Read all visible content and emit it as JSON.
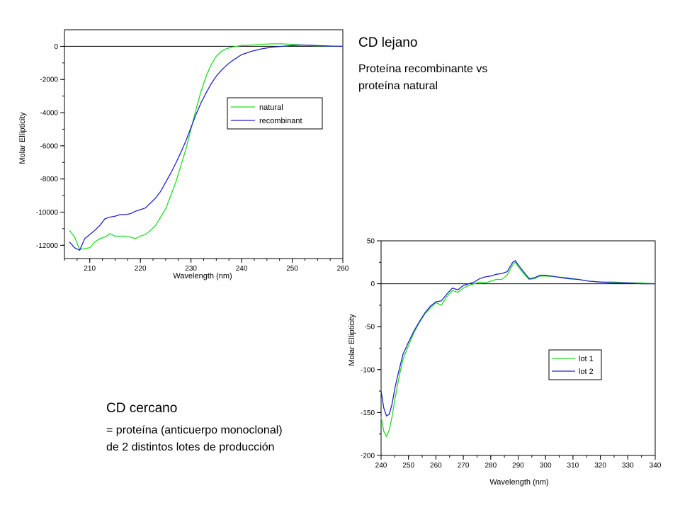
{
  "captions": {
    "far": {
      "title": "CD lejano",
      "line1": "Proteína recombinante vs",
      "line2": "proteína natural"
    },
    "near": {
      "title": "CD cercano",
      "line1": "= proteína (anticuerpo monoclonal)",
      "line2": "de 2 distintos lotes de producción"
    }
  },
  "chart_data": [
    {
      "id": "far_uv",
      "type": "line",
      "xlabel": "Wavelength (nm)",
      "ylabel": "Molar Ellipticity",
      "xlim": [
        205,
        260
      ],
      "ylim": [
        -12800,
        1000
      ],
      "xticks": [
        210,
        220,
        230,
        240,
        250,
        260
      ],
      "yticks": [
        0,
        -2000,
        -4000,
        -6000,
        -8000,
        -10000,
        -12000
      ],
      "legend_position": "right",
      "series": [
        {
          "name": "natural",
          "color": "#22dd22",
          "x": [
            206,
            207,
            208,
            209,
            210,
            211,
            212,
            213,
            214,
            215,
            216,
            217,
            218,
            219,
            220,
            221,
            222,
            223,
            224,
            225,
            226,
            227,
            228,
            229,
            230,
            231,
            232,
            233,
            234,
            235,
            236,
            237,
            238,
            239,
            240,
            242,
            244,
            246,
            248,
            250,
            252,
            254,
            256,
            258,
            260
          ],
          "y": [
            -11100,
            -11500,
            -12250,
            -12200,
            -12150,
            -11800,
            -11600,
            -11500,
            -11300,
            -11450,
            -11450,
            -11450,
            -11500,
            -11600,
            -11450,
            -11350,
            -11100,
            -10800,
            -10300,
            -9800,
            -9000,
            -8200,
            -7200,
            -6200,
            -5000,
            -3800,
            -2700,
            -1800,
            -1100,
            -600,
            -300,
            -150,
            -50,
            0,
            50,
            80,
            120,
            150,
            150,
            120,
            80,
            40,
            20,
            10,
            0
          ]
        },
        {
          "name": "recombinant",
          "color": "#2222cc",
          "x": [
            206,
            207,
            208,
            209,
            210,
            211,
            212,
            213,
            214,
            215,
            216,
            217,
            218,
            219,
            220,
            221,
            222,
            223,
            224,
            225,
            226,
            227,
            228,
            229,
            230,
            231,
            232,
            233,
            234,
            235,
            236,
            237,
            238,
            239,
            240,
            242,
            244,
            246,
            248,
            250,
            252,
            254,
            256,
            258,
            260
          ],
          "y": [
            -11800,
            -12150,
            -12300,
            -11600,
            -11350,
            -11100,
            -10800,
            -10400,
            -10300,
            -10250,
            -10150,
            -10150,
            -10100,
            -9950,
            -9850,
            -9750,
            -9450,
            -9150,
            -8750,
            -8200,
            -7650,
            -7050,
            -6400,
            -5700,
            -4900,
            -4100,
            -3400,
            -2800,
            -2250,
            -1800,
            -1450,
            -1150,
            -900,
            -700,
            -500,
            -300,
            -150,
            -50,
            0,
            50,
            80,
            60,
            30,
            10,
            0
          ]
        }
      ]
    },
    {
      "id": "near_uv",
      "type": "line",
      "xlabel": "Wavelength (nm)",
      "ylabel": "Molar Ellipticity",
      "xlim": [
        240,
        340
      ],
      "ylim": [
        -200,
        50
      ],
      "xticks": [
        240,
        250,
        260,
        270,
        280,
        290,
        300,
        310,
        320,
        330,
        340
      ],
      "yticks": [
        50,
        0,
        -50,
        -100,
        -150,
        -200
      ],
      "legend_position": "bottom-right",
      "series": [
        {
          "name": "lot 1",
          "color": "#22dd22",
          "x": [
            240,
            241,
            242,
            243,
            244,
            245,
            246,
            247,
            248,
            250,
            252,
            254,
            256,
            258,
            260,
            262,
            264,
            266,
            268,
            270,
            272,
            274,
            276,
            278,
            280,
            282,
            284,
            286,
            288,
            289,
            290,
            292,
            294,
            296,
            298,
            300,
            304,
            308,
            312,
            316,
            320,
            325,
            330,
            335,
            340
          ],
          "y": [
            -155,
            -172,
            -178,
            -170,
            -155,
            -135,
            -118,
            -102,
            -88,
            -72,
            -57,
            -45,
            -35,
            -28,
            -22,
            -25,
            -15,
            -8,
            -10,
            -5,
            -2,
            0,
            2,
            1,
            3,
            5,
            5,
            10,
            22,
            25,
            20,
            12,
            5,
            6,
            9,
            9,
            8,
            7,
            5,
            3,
            2,
            2,
            1,
            1,
            0
          ]
        },
        {
          "name": "lot 2",
          "color": "#2222cc",
          "x": [
            240,
            241,
            242,
            243,
            244,
            245,
            246,
            247,
            248,
            250,
            252,
            254,
            256,
            258,
            260,
            262,
            264,
            266,
            268,
            270,
            272,
            274,
            276,
            278,
            280,
            282,
            284,
            286,
            288,
            289,
            290,
            292,
            294,
            296,
            298,
            300,
            304,
            308,
            312,
            316,
            320,
            325,
            330,
            335,
            340
          ],
          "y": [
            -125,
            -145,
            -154,
            -152,
            -140,
            -122,
            -108,
            -95,
            -82,
            -68,
            -55,
            -44,
            -34,
            -26,
            -21,
            -20,
            -12,
            -5,
            -7,
            -2,
            0,
            2,
            6,
            8,
            9,
            11,
            12,
            14,
            25,
            27,
            22,
            14,
            6,
            7,
            10,
            10,
            8,
            6,
            5,
            3,
            2,
            1,
            1,
            0,
            0
          ]
        }
      ]
    }
  ]
}
